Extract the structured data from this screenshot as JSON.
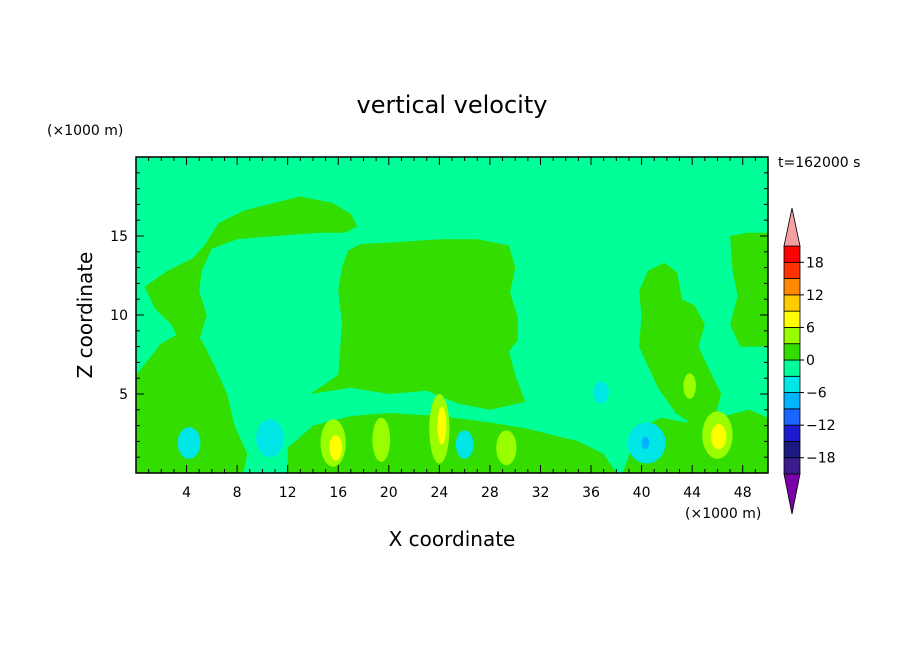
{
  "chart_data": {
    "type": "heatmap",
    "title": "vertical velocity",
    "xlabel": "X coordinate",
    "ylabel": "Z coordinate",
    "x_unit": "(×1000 m)",
    "y_unit": "(×1000 m)",
    "time_label": "t=162000 s",
    "xlim": [
      0,
      50
    ],
    "ylim": [
      0,
      20
    ],
    "x_ticks": [
      4,
      8,
      12,
      16,
      20,
      24,
      28,
      32,
      36,
      40,
      44,
      48
    ],
    "y_ticks": [
      5,
      10,
      15
    ],
    "colorbar": {
      "levels": [
        -21,
        -18,
        -15,
        -12,
        -9,
        -6,
        -3,
        0,
        3,
        6,
        9,
        12,
        15,
        18,
        21
      ],
      "tick_labels": [
        18,
        12,
        6,
        0,
        -6,
        -12,
        -18
      ],
      "colors": [
        "#7a00a8",
        "#3b1c8c",
        "#1a1a80",
        "#1a1ad0",
        "#1a66ff",
        "#00b4ff",
        "#00e6e6",
        "#00ff99",
        "#33dd00",
        "#99ff00",
        "#ffff00",
        "#ffcc00",
        "#ff8800",
        "#ff3300",
        "#ff0000",
        "#f4a0a0"
      ]
    },
    "regions": [
      {
        "name": "upper-left-upward-band",
        "value": 1.5,
        "shape": "polygon",
        "points": [
          [
            0.7,
            11.8
          ],
          [
            2.5,
            12.8
          ],
          [
            4.5,
            13.6
          ],
          [
            5.5,
            14.5
          ],
          [
            6.5,
            15.8
          ],
          [
            8.5,
            16.6
          ],
          [
            11,
            17.1
          ],
          [
            13,
            17.5
          ],
          [
            15.5,
            17.1
          ],
          [
            17,
            16.4
          ],
          [
            17.5,
            15.6
          ],
          [
            16.5,
            15.2
          ],
          [
            14.5,
            15.2
          ],
          [
            11,
            15
          ],
          [
            8,
            14.8
          ],
          [
            6,
            14.2
          ],
          [
            5.2,
            12.8
          ],
          [
            5,
            11.5
          ],
          [
            5.6,
            10
          ],
          [
            5,
            8.4
          ],
          [
            4,
            7.5
          ],
          [
            3.5,
            8.2
          ],
          [
            2.8,
            9.4
          ],
          [
            1.5,
            10.4
          ]
        ]
      },
      {
        "name": "central-updraft-column",
        "value": 2,
        "shape": "polygon",
        "points": [
          [
            13.8,
            5
          ],
          [
            16,
            6.2
          ],
          [
            16.3,
            9.4
          ],
          [
            16,
            11.6
          ],
          [
            16.3,
            13
          ],
          [
            16.8,
            14.1
          ],
          [
            17.8,
            14.5
          ],
          [
            20.5,
            14.6
          ],
          [
            24,
            14.8
          ],
          [
            27,
            14.8
          ],
          [
            29.5,
            14.4
          ],
          [
            30,
            13
          ],
          [
            29.6,
            11.4
          ],
          [
            30.2,
            9.9
          ],
          [
            30.2,
            8.4
          ],
          [
            29.5,
            7.7
          ],
          [
            30,
            6.2
          ],
          [
            30.8,
            4.5
          ],
          [
            28,
            4
          ],
          [
            25.5,
            4.4
          ],
          [
            23,
            5.2
          ],
          [
            20,
            5
          ],
          [
            17,
            5.4
          ]
        ]
      },
      {
        "name": "right-updraft-column",
        "value": 2,
        "shape": "polygon",
        "points": [
          [
            39.8,
            8
          ],
          [
            40,
            10
          ],
          [
            39.8,
            11.5
          ],
          [
            40.5,
            12.8
          ],
          [
            41.8,
            13.3
          ],
          [
            42.8,
            12.7
          ],
          [
            43.2,
            11
          ],
          [
            44.2,
            10.6
          ],
          [
            45,
            9.4
          ],
          [
            44.5,
            8
          ],
          [
            45.2,
            6.8
          ],
          [
            46.3,
            5
          ],
          [
            45.8,
            3.5
          ],
          [
            44,
            3.1
          ],
          [
            42.7,
            3.8
          ],
          [
            41.3,
            5.4
          ]
        ]
      },
      {
        "name": "far-right-band",
        "value": 1.5,
        "shape": "polygon",
        "points": [
          [
            47,
            15
          ],
          [
            47.2,
            12.8
          ],
          [
            47.6,
            11.2
          ],
          [
            47,
            9.4
          ],
          [
            47.8,
            8
          ],
          [
            50,
            8
          ],
          [
            50,
            15.2
          ],
          [
            48.4,
            15.2
          ]
        ]
      },
      {
        "name": "lower-left-band",
        "value": 1.5,
        "shape": "polygon",
        "points": [
          [
            0,
            0
          ],
          [
            8.5,
            0
          ],
          [
            8.8,
            1.2
          ],
          [
            7.8,
            3
          ],
          [
            7.2,
            5
          ],
          [
            6.2,
            6.8
          ],
          [
            5.2,
            8.4
          ],
          [
            3.6,
            8.9
          ],
          [
            2,
            8.2
          ],
          [
            0.8,
            7
          ],
          [
            0,
            6.2
          ]
        ]
      },
      {
        "name": "surface-band",
        "value": 1,
        "shape": "polygon",
        "points": [
          [
            12,
            0
          ],
          [
            38,
            0
          ],
          [
            37,
            1.2
          ],
          [
            35,
            2
          ],
          [
            33,
            2.4
          ],
          [
            31,
            2.8
          ],
          [
            28,
            3.2
          ],
          [
            24,
            3.6
          ],
          [
            20,
            3.8
          ],
          [
            17,
            3.6
          ],
          [
            14,
            3
          ],
          [
            12,
            1.6
          ]
        ]
      },
      {
        "name": "right-surface-band",
        "value": 1,
        "shape": "polygon",
        "points": [
          [
            38.5,
            0
          ],
          [
            50,
            0
          ],
          [
            50,
            3.5
          ],
          [
            48.5,
            4
          ],
          [
            46,
            3.5
          ],
          [
            43.5,
            3.2
          ],
          [
            41.5,
            3.5
          ],
          [
            39.8,
            2.8
          ]
        ]
      },
      {
        "name": "updraft-16km",
        "value": 4,
        "shape": "ellipse",
        "cx": 15.6,
        "cy": 1.9,
        "rx": 1.0,
        "ry": 1.5
      },
      {
        "name": "updraft-16km-core",
        "value": 7,
        "shape": "ellipse",
        "cx": 15.8,
        "cy": 1.6,
        "rx": 0.5,
        "ry": 0.8
      },
      {
        "name": "updraft-19km",
        "value": 4,
        "shape": "ellipse",
        "cx": 19.4,
        "cy": 2.1,
        "rx": 0.7,
        "ry": 1.4
      },
      {
        "name": "updraft-24km",
        "value": 4,
        "shape": "ellipse",
        "cx": 24.0,
        "cy": 2.8,
        "rx": 0.8,
        "ry": 2.2
      },
      {
        "name": "updraft-24km-core",
        "value": 7,
        "shape": "ellipse",
        "cx": 24.2,
        "cy": 3.0,
        "rx": 0.35,
        "ry": 1.2
      },
      {
        "name": "updraft-29km",
        "value": 4,
        "shape": "ellipse",
        "cx": 29.3,
        "cy": 1.6,
        "rx": 0.8,
        "ry": 1.1
      },
      {
        "name": "updraft-44km",
        "value": 4,
        "shape": "ellipse",
        "cx": 43.8,
        "cy": 5.5,
        "rx": 0.5,
        "ry": 0.8
      },
      {
        "name": "updraft-46km",
        "value": 4,
        "shape": "ellipse",
        "cx": 46.0,
        "cy": 2.4,
        "rx": 1.2,
        "ry": 1.5
      },
      {
        "name": "updraft-46km-core",
        "value": 7,
        "shape": "ellipse",
        "cx": 46.1,
        "cy": 2.3,
        "rx": 0.6,
        "ry": 0.8
      },
      {
        "name": "downdraft-4km",
        "value": -4,
        "shape": "ellipse",
        "cx": 4.2,
        "cy": 1.9,
        "rx": 0.9,
        "ry": 1.0
      },
      {
        "name": "downdraft-11km",
        "value": -4,
        "shape": "ellipse",
        "cx": 10.6,
        "cy": 2.2,
        "rx": 1.1,
        "ry": 1.2
      },
      {
        "name": "downdraft-11km-core",
        "value": -6,
        "shape": "ellipse",
        "cx": 10.6,
        "cy": 2.0,
        "rx": 0.5,
        "ry": 0.6
      },
      {
        "name": "downdraft-26km",
        "value": -4,
        "shape": "ellipse",
        "cx": 26.0,
        "cy": 1.8,
        "rx": 0.7,
        "ry": 0.9
      },
      {
        "name": "downdraft-37km",
        "value": -4,
        "shape": "ellipse",
        "cx": 36.8,
        "cy": 5.1,
        "rx": 0.6,
        "ry": 0.7
      },
      {
        "name": "downdraft-40km",
        "value": -4,
        "shape": "ellipse",
        "cx": 40.4,
        "cy": 1.9,
        "rx": 1.5,
        "ry": 1.3
      },
      {
        "name": "downdraft-40km-core",
        "value": -9,
        "shape": "ellipse",
        "cx": 40.3,
        "cy": 1.9,
        "rx": 0.3,
        "ry": 0.4
      }
    ]
  }
}
